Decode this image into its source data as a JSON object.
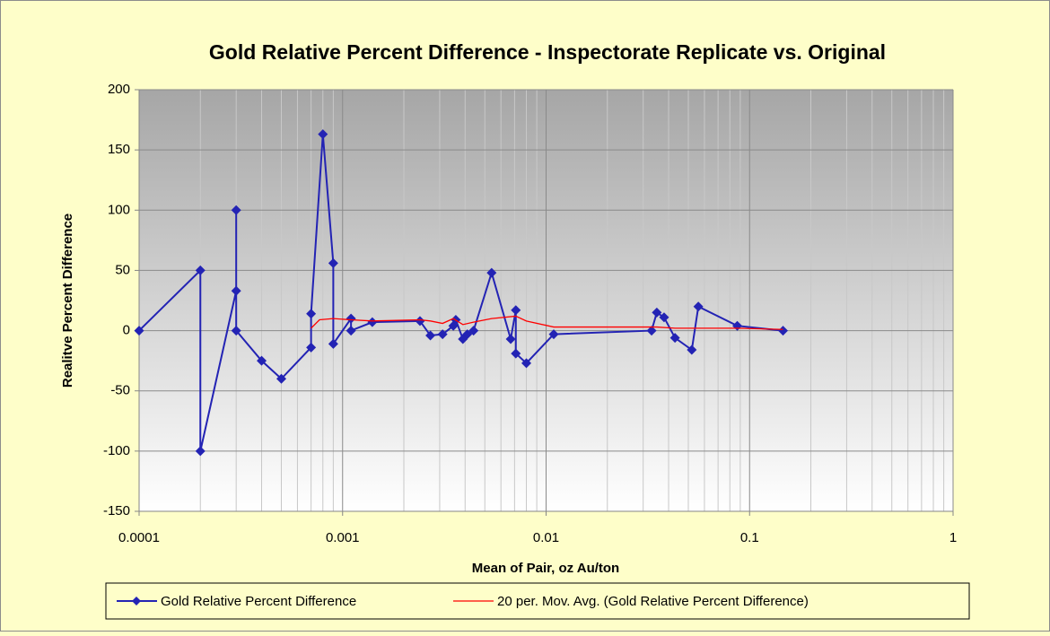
{
  "chart_data": {
    "type": "line",
    "title": "Gold Relative Percent Difference - Inspectorate Replicate vs. Original",
    "x_label": "Mean of Pair, oz Au/ton",
    "y_label": "Realitve Percent Difference",
    "xscale": "log",
    "xlim": [
      0.0001,
      1
    ],
    "xticks": [
      0.0001,
      0.001,
      0.01,
      0.1,
      1
    ],
    "ylim": [
      -150,
      200
    ],
    "yticks": [
      -150,
      -100,
      -50,
      0,
      50,
      100,
      150,
      200
    ],
    "grid": true,
    "legend": "bottom",
    "series": [
      {
        "name": "Gold Relative Percent Difference",
        "color": "#2323b4",
        "marker": "diamond",
        "x": [
          0.0001,
          0.0002,
          0.0002,
          0.0003,
          0.0003,
          0.0003,
          0.0004,
          0.0005,
          0.0007,
          0.0007,
          0.0008,
          0.0009,
          0.0009,
          0.0011,
          0.0011,
          0.0014,
          0.0024,
          0.0027,
          0.0031,
          0.0035,
          0.0036,
          0.0039,
          0.0041,
          0.0044,
          0.0054,
          0.0067,
          0.0071,
          0.0071,
          0.008,
          0.0109,
          0.033,
          0.035,
          0.038,
          0.043,
          0.052,
          0.056,
          0.087,
          0.146
        ],
        "values": [
          0,
          50,
          -100,
          33,
          100,
          0,
          -25,
          -40,
          -14,
          14,
          163,
          56,
          -11,
          10,
          0,
          7,
          8,
          -4,
          -3,
          4,
          9,
          -7,
          -3,
          0,
          48,
          -7,
          17,
          -19,
          -27,
          -3,
          0,
          15,
          11,
          -6,
          -16,
          20,
          4,
          0
        ]
      },
      {
        "name": "20 per. Mov. Avg. (Gold Relative Percent Difference)",
        "color": "#ff0000",
        "marker": "none",
        "x": [
          0.0007,
          0.00077,
          0.0009,
          0.0011,
          0.0014,
          0.0024,
          0.0027,
          0.0031,
          0.0035,
          0.0039,
          0.0044,
          0.0054,
          0.0071,
          0.008,
          0.0109,
          0.033,
          0.035,
          0.043,
          0.056,
          0.087,
          0.146
        ],
        "values": [
          2,
          9,
          10,
          9,
          8,
          9,
          8,
          6,
          10,
          5,
          7,
          10,
          12,
          8,
          3,
          3,
          3,
          2,
          2,
          2,
          1
        ]
      }
    ]
  }
}
